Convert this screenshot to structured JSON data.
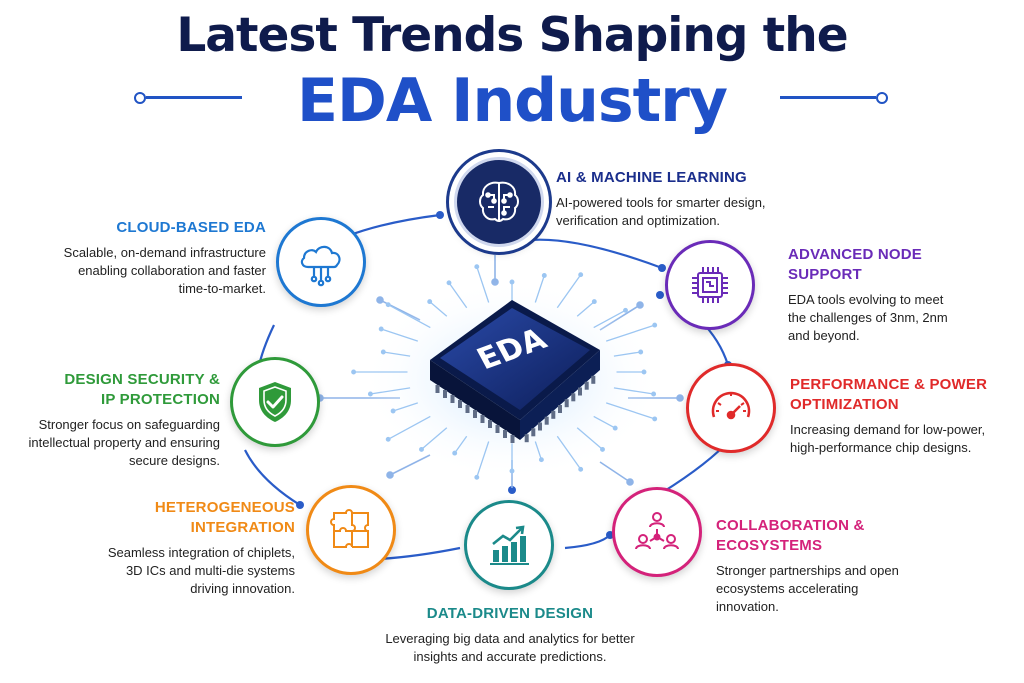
{
  "title": {
    "line1": "Latest Trends Shaping the",
    "line2": "EDA Industry"
  },
  "center": {
    "chip_label": "EDA"
  },
  "trends": {
    "ai": {
      "title": "AI & MACHINE LEARNING",
      "desc": "AI-powered tools for smarter design, verification and optimization.",
      "color": "#1a2e8c",
      "icon": "brain-circuit-icon"
    },
    "cloud": {
      "title": "CLOUD-BASED EDA",
      "desc": "Scalable, on-demand infrastructure enabling collaboration and faster time-to-market.",
      "color": "#1e78d2",
      "icon": "cloud-icon"
    },
    "advanced": {
      "title": "ADVANCED NODE SUPPORT",
      "desc": "EDA tools evolving to meet the challenges of 3nm, 2nm and beyond.",
      "color": "#6a2bb8",
      "icon": "chip-icon"
    },
    "security": {
      "title": "DESIGN SECURITY & IP PROTECTION",
      "desc": "Stronger focus on safeguarding intellectual property and ensuring secure designs.",
      "color": "#2f9a3a",
      "icon": "shield-check-icon"
    },
    "performance": {
      "title": "PERFORMANCE & POWER OPTIMIZATION",
      "desc": "Increasing demand for low-power, high-performance chip designs.",
      "color": "#e02a2a",
      "icon": "gauge-icon"
    },
    "heterogeneous": {
      "title": "HETEROGENEOUS INTEGRATION",
      "desc": "Seamless integration of chiplets, 3D ICs and multi-die systems driving innovation.",
      "color": "#f08a16",
      "icon": "puzzle-icon"
    },
    "collaboration": {
      "title": "COLLABORATION & ECOSYSTEMS",
      "desc": "Stronger partnerships and open ecosystems accelerating innovation.",
      "color": "#d4227a",
      "icon": "network-people-icon"
    },
    "data": {
      "title": "DATA-DRIVEN DESIGN",
      "desc": "Leveraging big data and analytics for better insights and accurate predictions.",
      "color": "#1b8a8a",
      "icon": "bar-chart-icon"
    }
  }
}
